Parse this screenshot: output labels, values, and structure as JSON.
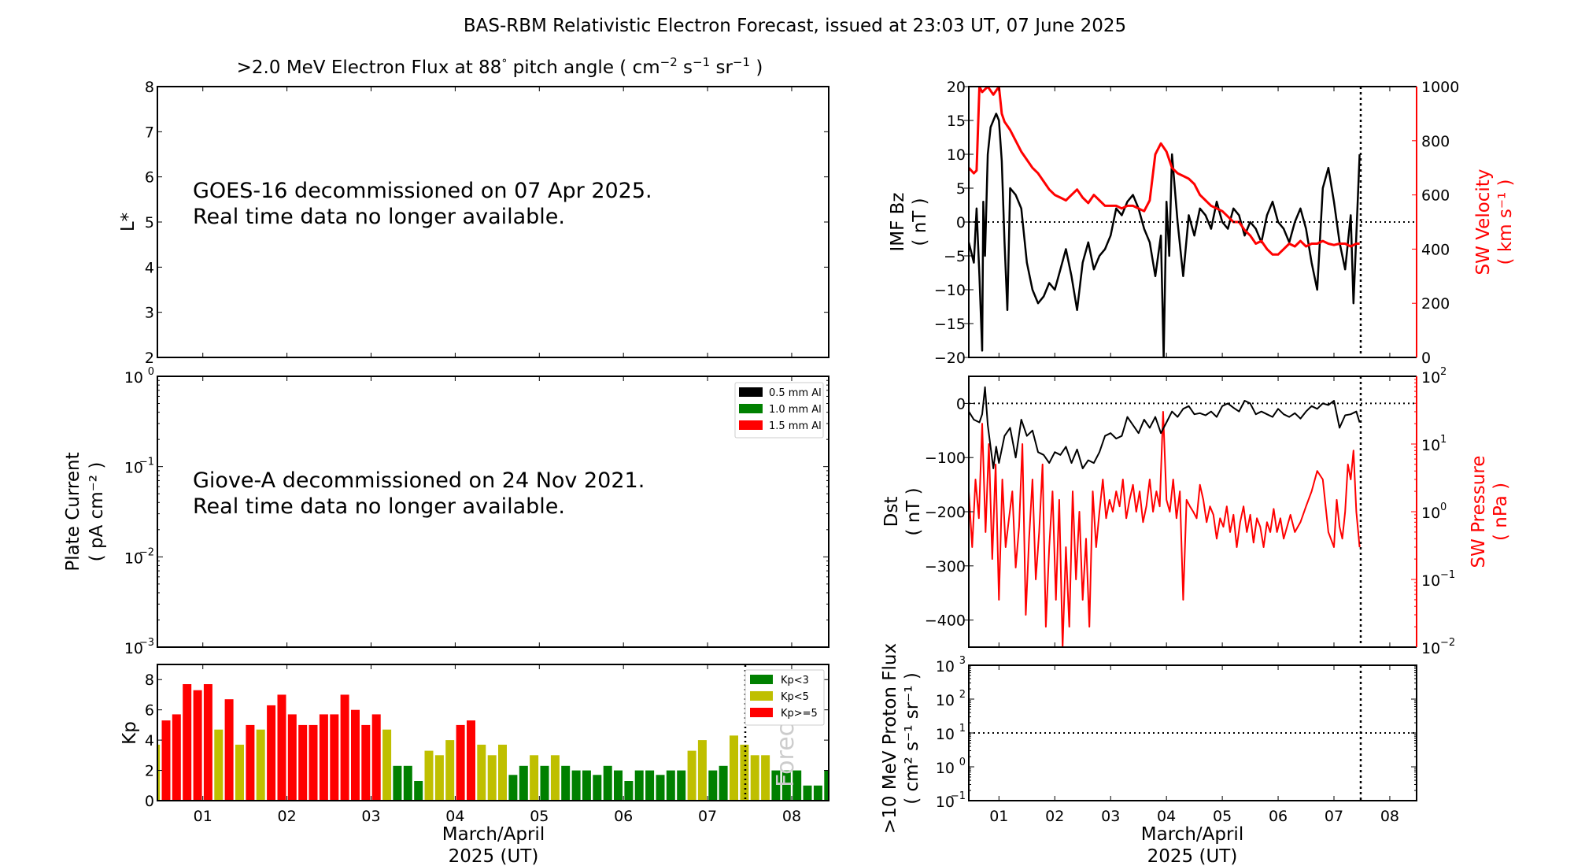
{
  "figure": {
    "title": "BAS-RBM Relativistic Electron Forecast, issued at 23:03 UT, 07 June 2025",
    "xlabel_line1": "March/April",
    "xlabel_line2": "2025 (UT)",
    "forecast_label": "Forecast",
    "colors": {
      "red": "#ff0000",
      "green": "#008000",
      "yellow": "#bfbf00",
      "black": "#000000"
    }
  },
  "chart_data": [
    {
      "id": "electron-flux",
      "type": "heatmap",
      "title": ">2.0 MeV Electron Flux at 88° pitch angle ( cm⁻² s⁻¹ sr⁻¹ )",
      "title_parts": {
        "main": ">2.0 MeV Electron Flux at 88",
        "deg": "°",
        "rest": " pitch angle ( cm",
        "e1": "−2",
        "s": " s",
        "e2": "−1",
        "sr": " sr",
        "e3": "−1",
        "close": " )"
      },
      "ylabel": "L*",
      "ylim": [
        2,
        8
      ],
      "yticks": [
        "2",
        "3",
        "4",
        "5",
        "6",
        "7",
        "8"
      ],
      "message_line1": "GOES-16 decommissioned on 07 Apr 2025.",
      "message_line2": "Real time data no longer available."
    },
    {
      "id": "plate-current",
      "type": "line",
      "ylabel_line1": "Plate Current",
      "ylabel_line2": "( pA cm⁻² )",
      "yscale": "log",
      "ylim": [
        0.001,
        1
      ],
      "yticks": [
        {
          "base": "10",
          "exp": "−3"
        },
        {
          "base": "10",
          "exp": "−2"
        },
        {
          "base": "10",
          "exp": "−1"
        },
        {
          "base": "10",
          "exp": "0"
        }
      ],
      "legend": [
        {
          "label": "0.5 mm Al",
          "color": "#000000"
        },
        {
          "label": "1.0 mm Al",
          "color": "#008000"
        },
        {
          "label": "1.5 mm Al",
          "color": "#ff0000"
        }
      ],
      "legend_position": "top-right",
      "message_line1": "Giove-A decommissioned on 24 Nov 2021.",
      "message_line2": "Real time data no longer available.",
      "series": []
    },
    {
      "id": "kp",
      "type": "bar",
      "ylabel": "Kp",
      "ylim": [
        0,
        9
      ],
      "yticks": [
        "0",
        "2",
        "4",
        "6",
        "8"
      ],
      "xlim": [
        0.46,
        8.44
      ],
      "xticks": [
        "01",
        "02",
        "03",
        "04",
        "05",
        "06",
        "07",
        "08"
      ],
      "forecast_start": 7.46,
      "bar_interval_days": 0.125,
      "first_bar_center": 0.4375,
      "values": [
        3.7,
        5.3,
        5.7,
        7.7,
        7.3,
        7.7,
        4.7,
        6.7,
        3.7,
        5.0,
        4.7,
        6.3,
        7.0,
        5.7,
        5.0,
        5.0,
        5.7,
        5.7,
        7.0,
        6.0,
        5.0,
        5.7,
        4.7,
        2.3,
        2.3,
        1.3,
        3.3,
        3.0,
        4.0,
        5.0,
        5.3,
        3.7,
        3.0,
        3.7,
        1.7,
        2.3,
        3.0,
        2.3,
        3.0,
        2.3,
        2.0,
        2.0,
        1.7,
        2.3,
        2.0,
        1.3,
        2.0,
        2.0,
        1.7,
        2.0,
        2.0,
        3.3,
        4.0,
        2.0,
        2.3,
        4.3,
        3.7,
        3.0,
        3.0,
        2.0,
        2.0,
        2.0,
        1.0,
        1.0,
        2.0
      ],
      "legend": [
        {
          "label": "Kp<3",
          "color": "#008000"
        },
        {
          "label": "Kp<5",
          "color": "#bfbf00"
        },
        {
          "label": "Kp>=5",
          "color": "#ff0000"
        }
      ],
      "legend_position": "top-right"
    },
    {
      "id": "imf-bz-sw-velocity",
      "type": "line",
      "ylabel_line1": "IMF Bz",
      "ylabel_line2": "( nT )",
      "ylim": [
        -20,
        20
      ],
      "yticks": [
        "−20",
        "−15",
        "−10",
        "−5",
        "0",
        "5",
        "10",
        "15",
        "20"
      ],
      "y2label_line1": "SW Velocity",
      "y2label_line2": "( km s⁻¹ )",
      "y2lim": [
        0,
        1000
      ],
      "y2ticks": [
        "0",
        "200",
        "400",
        "600",
        "800",
        "1000"
      ],
      "xlim": [
        0.46,
        8.48
      ],
      "forecast_start": 7.46,
      "series": [
        {
          "name": "IMF Bz",
          "axis": "left",
          "color": "#000000",
          "x": [
            0.46,
            0.55,
            0.6,
            0.65,
            0.7,
            0.72,
            0.75,
            0.8,
            0.85,
            0.9,
            0.95,
            1.0,
            1.05,
            1.1,
            1.15,
            1.2,
            1.3,
            1.4,
            1.5,
            1.6,
            1.7,
            1.8,
            1.9,
            2.0,
            2.1,
            2.2,
            2.3,
            2.4,
            2.5,
            2.6,
            2.7,
            2.8,
            2.9,
            3.0,
            3.1,
            3.2,
            3.3,
            3.4,
            3.5,
            3.6,
            3.7,
            3.8,
            3.9,
            3.95,
            4.0,
            4.05,
            4.1,
            4.2,
            4.3,
            4.4,
            4.5,
            4.6,
            4.7,
            4.8,
            4.9,
            5.0,
            5.1,
            5.2,
            5.3,
            5.4,
            5.5,
            5.6,
            5.7,
            5.8,
            5.9,
            6.0,
            6.1,
            6.2,
            6.3,
            6.4,
            6.5,
            6.6,
            6.7,
            6.8,
            6.9,
            7.0,
            7.1,
            7.2,
            7.3,
            7.35,
            7.4,
            7.46
          ],
          "values": [
            -3,
            -6,
            2,
            -8,
            -19,
            3,
            -5,
            10,
            14,
            15,
            16,
            15,
            9,
            -3,
            -13,
            5,
            4,
            2,
            -6,
            -10,
            -12,
            -11,
            -9,
            -10,
            -7,
            -4,
            -8,
            -13,
            -6,
            -3,
            -7,
            -5,
            -4,
            -2,
            2,
            1,
            3,
            4,
            2,
            -1,
            -3,
            -8,
            -2,
            -20,
            3,
            -5,
            10,
            0,
            -8,
            1,
            -2,
            2,
            1,
            -1,
            3,
            0,
            -1,
            2,
            1,
            -2,
            0,
            -1,
            -3,
            1,
            3,
            0,
            -1,
            -3,
            0,
            2,
            -1,
            -6,
            -10,
            5,
            8,
            3,
            -3,
            -7,
            1,
            -12,
            -2,
            10
          ]
        },
        {
          "name": "SW Velocity",
          "axis": "right",
          "color": "#ff0000",
          "x": [
            0.46,
            0.55,
            0.6,
            0.65,
            0.7,
            0.8,
            0.9,
            1.0,
            1.05,
            1.1,
            1.2,
            1.3,
            1.4,
            1.5,
            1.6,
            1.7,
            1.8,
            1.9,
            2.0,
            2.1,
            2.2,
            2.3,
            2.4,
            2.5,
            2.6,
            2.7,
            2.8,
            2.9,
            3.0,
            3.1,
            3.2,
            3.3,
            3.4,
            3.5,
            3.6,
            3.7,
            3.8,
            3.9,
            4.0,
            4.1,
            4.2,
            4.3,
            4.4,
            4.5,
            4.6,
            4.7,
            4.8,
            4.9,
            5.0,
            5.1,
            5.2,
            5.3,
            5.4,
            5.5,
            5.6,
            5.7,
            5.8,
            5.9,
            6.0,
            6.1,
            6.2,
            6.3,
            6.4,
            6.5,
            6.6,
            6.7,
            6.8,
            6.9,
            7.0,
            7.1,
            7.2,
            7.3,
            7.4,
            7.46
          ],
          "values": [
            700,
            680,
            690,
            1000,
            980,
            1000,
            970,
            1000,
            900,
            870,
            840,
            800,
            760,
            730,
            700,
            680,
            650,
            620,
            600,
            590,
            580,
            600,
            620,
            590,
            570,
            600,
            580,
            560,
            560,
            560,
            550,
            560,
            560,
            550,
            540,
            580,
            750,
            790,
            760,
            700,
            680,
            670,
            660,
            640,
            600,
            580,
            560,
            550,
            540,
            520,
            500,
            500,
            470,
            450,
            420,
            430,
            400,
            380,
            380,
            400,
            420,
            410,
            430,
            410,
            420,
            420,
            430,
            420,
            415,
            420,
            420,
            410,
            420,
            420
          ]
        }
      ]
    },
    {
      "id": "dst-sw-pressure",
      "type": "line",
      "ylabel_line1": "Dst",
      "ylabel_line2": "( nT )",
      "ylim": [
        -450,
        50
      ],
      "yticks": [
        "−400",
        "−300",
        "−200",
        "−100",
        "0"
      ],
      "y2label_line1": "SW Pressure",
      "y2label_line2": "( nPa )",
      "y2scale": "log",
      "y2lim": [
        0.01,
        100
      ],
      "y2ticks": [
        {
          "base": "10",
          "exp": "−2"
        },
        {
          "base": "10",
          "exp": "−1"
        },
        {
          "base": "10",
          "exp": "0"
        },
        {
          "base": "10",
          "exp": "1"
        },
        {
          "base": "10",
          "exp": "2"
        }
      ],
      "xlim": [
        0.46,
        8.48
      ],
      "forecast_start": 7.46,
      "series": [
        {
          "name": "Dst",
          "axis": "left",
          "color": "#000000",
          "x": [
            0.46,
            0.55,
            0.65,
            0.7,
            0.75,
            0.8,
            0.9,
            0.95,
            1.0,
            1.1,
            1.2,
            1.3,
            1.4,
            1.5,
            1.6,
            1.7,
            1.8,
            1.9,
            2.0,
            2.1,
            2.2,
            2.3,
            2.4,
            2.5,
            2.6,
            2.7,
            2.8,
            2.9,
            3.0,
            3.1,
            3.2,
            3.3,
            3.4,
            3.5,
            3.6,
            3.7,
            3.8,
            3.9,
            4.0,
            4.1,
            4.2,
            4.3,
            4.4,
            4.5,
            4.6,
            4.7,
            4.8,
            4.9,
            5.0,
            5.1,
            5.2,
            5.3,
            5.4,
            5.5,
            5.6,
            5.7,
            5.8,
            5.9,
            6.0,
            6.1,
            6.2,
            6.3,
            6.4,
            6.5,
            6.6,
            6.7,
            6.8,
            6.9,
            7.0,
            7.1,
            7.2,
            7.3,
            7.4,
            7.46
          ],
          "values": [
            -15,
            -30,
            -35,
            -20,
            30,
            -40,
            -120,
            -80,
            -110,
            -60,
            -45,
            -100,
            -30,
            -60,
            -50,
            -90,
            -95,
            -110,
            -90,
            -95,
            -80,
            -110,
            -85,
            -120,
            -105,
            -110,
            -90,
            -60,
            -55,
            -65,
            -60,
            -25,
            -40,
            -55,
            -30,
            -45,
            -25,
            -55,
            -35,
            -15,
            -25,
            -10,
            -5,
            -20,
            -18,
            -22,
            -15,
            -25,
            -5,
            0,
            -8,
            -15,
            5,
            0,
            -20,
            -15,
            -20,
            -25,
            -10,
            -20,
            -25,
            -18,
            -28,
            -15,
            -5,
            -10,
            0,
            -3,
            5,
            -45,
            -22,
            -20,
            -15,
            -35
          ]
        },
        {
          "name": "SW Pressure",
          "axis": "right",
          "color": "#ff0000",
          "x": [
            0.46,
            0.52,
            0.58,
            0.64,
            0.7,
            0.76,
            0.82,
            0.88,
            0.94,
            1.0,
            1.06,
            1.12,
            1.18,
            1.24,
            1.3,
            1.36,
            1.42,
            1.48,
            1.54,
            1.6,
            1.66,
            1.72,
            1.78,
            1.84,
            1.9,
            1.96,
            2.02,
            2.08,
            2.14,
            2.2,
            2.26,
            2.32,
            2.38,
            2.44,
            2.5,
            2.56,
            2.62,
            2.68,
            2.74,
            2.8,
            2.86,
            2.92,
            2.98,
            3.04,
            3.1,
            3.16,
            3.22,
            3.28,
            3.34,
            3.4,
            3.46,
            3.52,
            3.58,
            3.64,
            3.7,
            3.76,
            3.82,
            3.88,
            3.94,
            4.0,
            4.06,
            4.12,
            4.18,
            4.24,
            4.3,
            4.36,
            4.42,
            4.48,
            4.54,
            4.6,
            4.66,
            4.72,
            4.78,
            4.84,
            4.9,
            4.96,
            5.02,
            5.08,
            5.14,
            5.2,
            5.26,
            5.32,
            5.38,
            5.44,
            5.5,
            5.56,
            5.62,
            5.68,
            5.74,
            5.8,
            5.86,
            5.92,
            5.98,
            6.04,
            6.1,
            6.16,
            6.22,
            6.3,
            6.4,
            6.5,
            6.6,
            6.7,
            6.8,
            6.9,
            7.0,
            7.05,
            7.1,
            7.15,
            7.2,
            7.25,
            7.3,
            7.35,
            7.4,
            7.46
          ],
          "values": [
            2,
            0.3,
            3,
            0.8,
            20,
            0.5,
            10,
            0.2,
            5,
            0.05,
            3,
            0.3,
            0.8,
            2,
            0.15,
            0.6,
            10,
            0.03,
            0.4,
            3,
            0.1,
            0.5,
            5,
            0.02,
            0.3,
            2,
            0.05,
            1.5,
            0.01,
            0.3,
            0.02,
            2,
            0.1,
            1,
            0.05,
            0.4,
            0.02,
            2,
            0.3,
            1,
            3,
            0.8,
            1.5,
            1,
            2,
            1.2,
            3,
            0.8,
            1.5,
            2.5,
            1,
            2,
            0.7,
            1.2,
            3,
            1,
            2,
            1.2,
            30,
            1.5,
            1,
            3,
            0.8,
            2,
            0.05,
            1.5,
            1.2,
            1,
            0.8,
            2.5,
            1.5,
            0.7,
            1.2,
            0.9,
            0.4,
            0.8,
            0.6,
            1.2,
            0.5,
            0.9,
            0.3,
            0.7,
            1.2,
            0.5,
            0.9,
            0.35,
            0.8,
            0.6,
            0.3,
            0.7,
            0.5,
            1.1,
            0.5,
            0.8,
            0.4,
            0.6,
            0.9,
            0.5,
            0.7,
            1.2,
            2,
            4,
            3,
            0.5,
            0.3,
            1.5,
            0.6,
            0.4,
            1,
            5,
            3,
            8,
            1,
            0.3
          ]
        }
      ]
    },
    {
      "id": "proton-flux",
      "type": "line",
      "ylabel_line1": ">10 MeV Proton Flux",
      "ylabel_line2": "( cm² s⁻¹ sr⁻¹ )",
      "yscale": "log",
      "ylim": [
        0.1,
        1000
      ],
      "yticks": [
        {
          "base": "10",
          "exp": "−1"
        },
        {
          "base": "10",
          "exp": "0"
        },
        {
          "base": "10",
          "exp": "1"
        },
        {
          "base": "10",
          "exp": "2"
        },
        {
          "base": "10",
          "exp": "3"
        }
      ],
      "threshold": 10,
      "xlim": [
        0.46,
        8.48
      ],
      "xticks": [
        "01",
        "02",
        "03",
        "04",
        "05",
        "06",
        "07",
        "08"
      ],
      "forecast_start": 7.46,
      "series": []
    }
  ]
}
